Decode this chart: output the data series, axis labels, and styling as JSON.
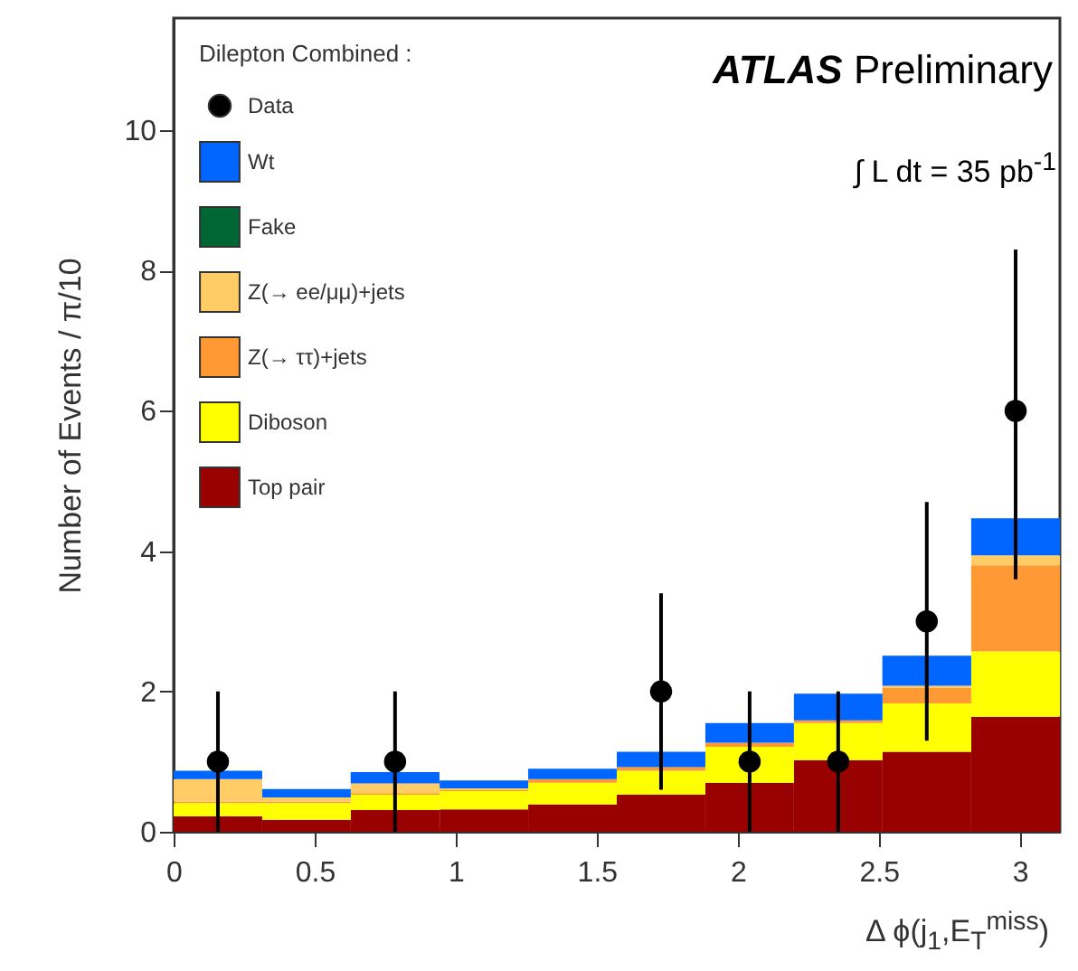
{
  "chart_data": {
    "type": "bar",
    "stacked": true,
    "xlabel": "Δ ϕ(j$_{1}$,E$_{T}$$^{miss}$)",
    "ylabel": "Number of Events / π/10",
    "legend_title": "Dilepton Combined :",
    "legend": "top left",
    "marker": "circle",
    "annotations": [
      "ATLAS Preliminary",
      "∫ L dt = 35 pb$^{-1}$"
    ],
    "x": [
      0.157,
      0.471,
      0.785,
      1.1,
      1.414,
      1.728,
      2.042,
      2.356,
      2.67,
      2.985
    ],
    "xlim": [
      0,
      3.142
    ],
    "xticks": [
      0,
      0.5,
      1,
      1.5,
      2,
      2.5,
      3
    ],
    "ylim": [
      0,
      11.6
    ],
    "yticks": [
      0,
      2,
      4,
      6,
      8,
      10
    ],
    "series": [
      {
        "name": "Top pair",
        "color": "#990000",
        "values": [
          0.22,
          0.17,
          0.31,
          0.32,
          0.39,
          0.53,
          0.7,
          1.02,
          1.14,
          1.64
        ]
      },
      {
        "name": "Diboson",
        "color": "#ffff00",
        "values": [
          0.19,
          0.24,
          0.22,
          0.26,
          0.31,
          0.34,
          0.51,
          0.53,
          0.69,
          0.93
        ]
      },
      {
        "name": "Z(→ ττ)+jets",
        "color": "#ff9933",
        "values": [
          0.02,
          0.02,
          0.02,
          0.02,
          0.05,
          0.05,
          0.06,
          0.04,
          0.22,
          1.23
        ]
      },
      {
        "name": "Z(→ ee/μμ)+jets",
        "color": "#ffcc66",
        "values": [
          0.32,
          0.06,
          0.14,
          0.02,
          0.0,
          0.0,
          0.0,
          0.0,
          0.03,
          0.14
        ]
      },
      {
        "name": "Fake",
        "color": "#006633",
        "values": [
          0,
          0,
          0,
          0,
          0,
          0,
          0,
          0,
          0,
          0
        ]
      },
      {
        "name": "Wt",
        "color": "#0066ff",
        "values": [
          0.12,
          0.12,
          0.16,
          0.11,
          0.15,
          0.22,
          0.28,
          0.38,
          0.43,
          0.53
        ]
      },
      {
        "name": "Data",
        "type": "scatter",
        "color": "#000000",
        "x": [
          0.157,
          0.785,
          1.728,
          2.042,
          2.356,
          2.67,
          2.985
        ],
        "values": [
          1,
          1,
          2,
          1,
          1,
          3,
          6
        ],
        "errors": [
          [
            0,
            2
          ],
          [
            0,
            2
          ],
          [
            0.6,
            3.4
          ],
          [
            0,
            2
          ],
          [
            0,
            2
          ],
          [
            1.3,
            4.7
          ],
          [
            3.6,
            8.3
          ]
        ]
      }
    ]
  }
}
